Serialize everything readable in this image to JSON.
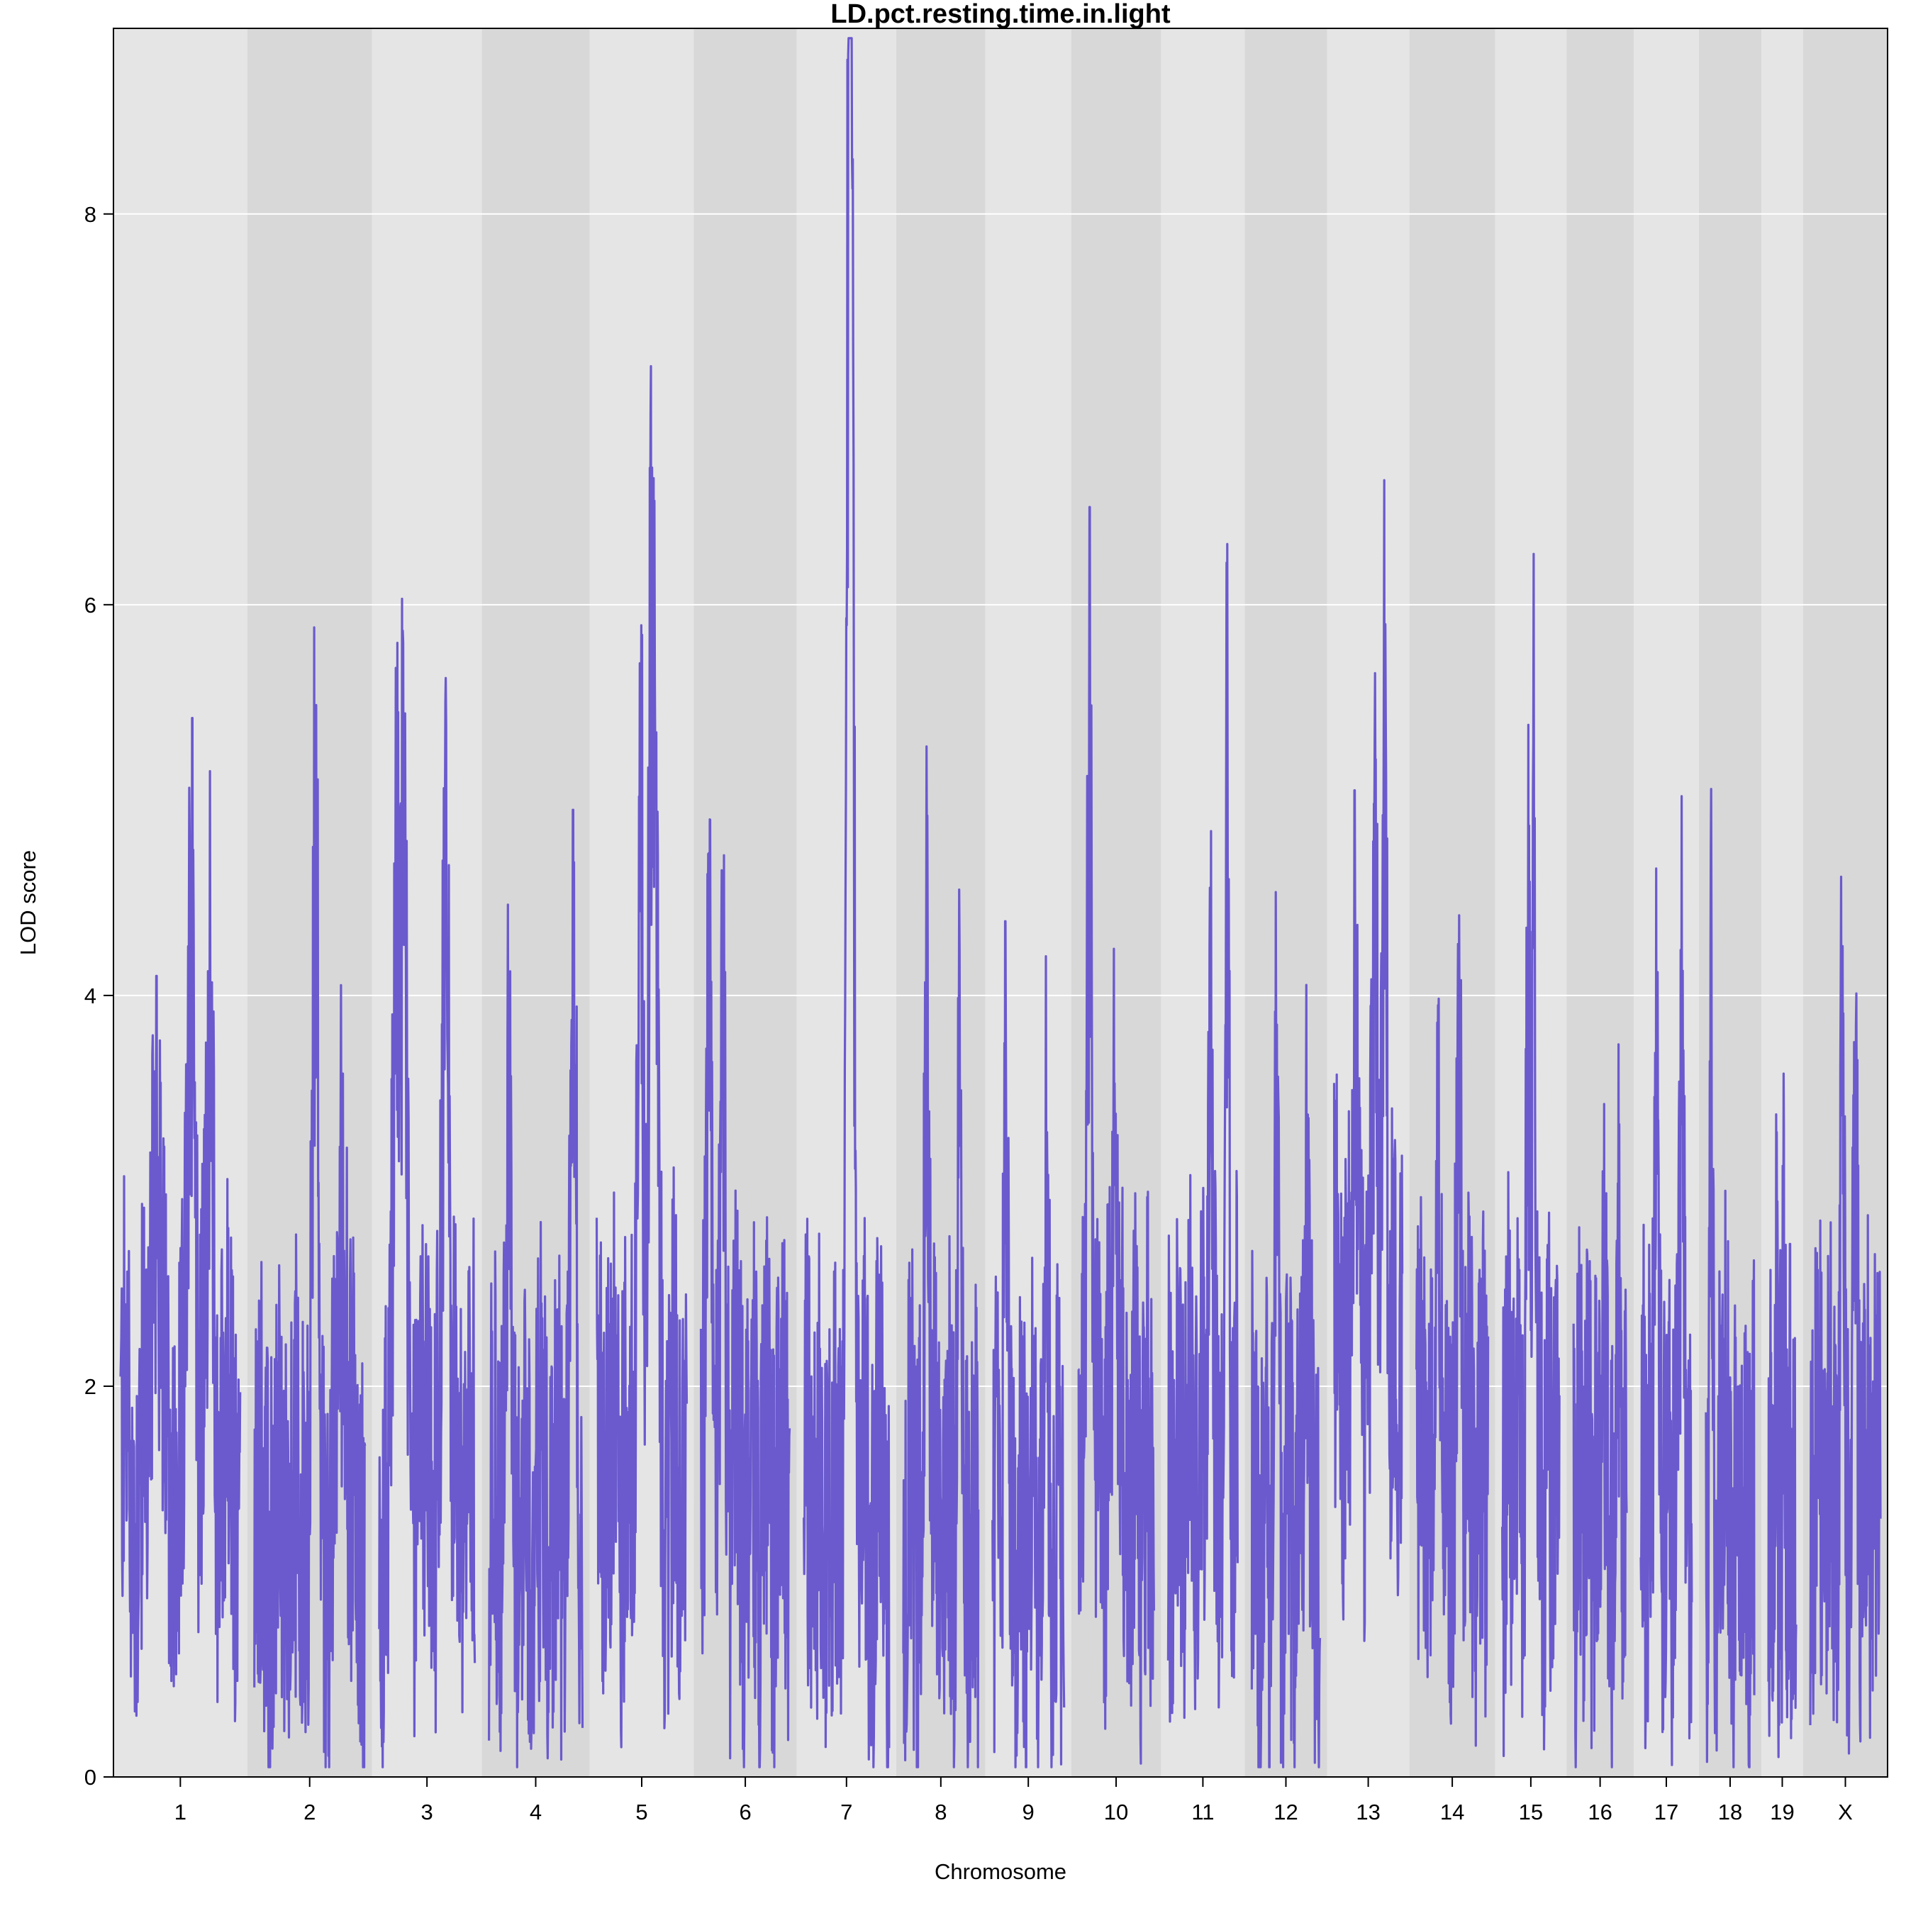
{
  "chart_data": {
    "type": "line",
    "title": "LD.pct.resting.time.in.light",
    "xlabel": "Chromosome",
    "ylabel": "LOD score",
    "ylim": [
      0,
      8.95
    ],
    "yticks": [
      0,
      2,
      4,
      6,
      8
    ],
    "grid": "horizontal",
    "background": "alternating grey bands per chromosome",
    "line_color": "#6a5acd",
    "band_colors": [
      "#e5e5e5",
      "#d8d8d8"
    ],
    "chromosomes": [
      {
        "label": "1",
        "length": 195,
        "baseline": 1.6,
        "peaks": [
          [
            0.6,
            5.42
          ],
          [
            0.3,
            4.1
          ],
          [
            0.75,
            3.98
          ]
        ]
      },
      {
        "label": "2",
        "length": 182,
        "baseline": 1.3,
        "peaks": [
          [
            0.55,
            5.0
          ],
          [
            0.8,
            3.6
          ]
        ]
      },
      {
        "label": "3",
        "length": 160,
        "baseline": 1.5,
        "peaks": [
          [
            0.25,
            5.6
          ],
          [
            0.7,
            5.38
          ],
          [
            0.18,
            5.1
          ]
        ]
      },
      {
        "label": "4",
        "length": 157,
        "baseline": 1.3,
        "peaks": [
          [
            0.9,
            4.95
          ],
          [
            0.2,
            3.75
          ]
        ]
      },
      {
        "label": "5",
        "length": 152,
        "baseline": 1.6,
        "peaks": [
          [
            0.6,
            6.25
          ],
          [
            0.48,
            5.7
          ],
          [
            0.65,
            5.25
          ]
        ]
      },
      {
        "label": "6",
        "length": 150,
        "baseline": 1.5,
        "peaks": [
          [
            0.1,
            4.9
          ],
          [
            0.25,
            3.75
          ]
        ]
      },
      {
        "label": "7",
        "length": 145,
        "baseline": 1.4,
        "peaks": [
          [
            0.53,
            8.75
          ],
          [
            0.56,
            7.0
          ]
        ]
      },
      {
        "label": "8",
        "length": 130,
        "baseline": 1.3,
        "peaks": [
          [
            0.32,
            4.92
          ],
          [
            0.75,
            4.0
          ]
        ]
      },
      {
        "label": "9",
        "length": 125,
        "baseline": 1.2,
        "peaks": [
          [
            0.18,
            4.38
          ],
          [
            0.76,
            3.3
          ]
        ]
      },
      {
        "label": "10",
        "length": 131,
        "baseline": 1.5,
        "peaks": [
          [
            0.15,
            6.5
          ],
          [
            0.48,
            3.55
          ]
        ]
      },
      {
        "label": "11",
        "length": 122,
        "baseline": 1.6,
        "peaks": [
          [
            0.85,
            5.25
          ],
          [
            0.6,
            4.5
          ]
        ]
      },
      {
        "label": "12",
        "length": 120,
        "baseline": 1.3,
        "peaks": [
          [
            0.36,
            3.85
          ],
          [
            0.8,
            3.3
          ]
        ]
      },
      {
        "label": "13",
        "length": 120,
        "baseline": 2.2,
        "peaks": [
          [
            0.75,
            5.9
          ],
          [
            0.6,
            5.65
          ],
          [
            0.3,
            5.05
          ]
        ]
      },
      {
        "label": "14",
        "length": 125,
        "baseline": 1.6,
        "peaks": [
          [
            0.3,
            3.95
          ],
          [
            0.6,
            3.85
          ]
        ]
      },
      {
        "label": "15",
        "length": 104,
        "baseline": 1.6,
        "peaks": [
          [
            0.55,
            6.25
          ],
          [
            0.45,
            4.2
          ]
        ]
      },
      {
        "label": "16",
        "length": 98,
        "baseline": 1.4,
        "peaks": [
          [
            0.85,
            3.75
          ],
          [
            0.55,
            3.1
          ]
        ]
      },
      {
        "label": "17",
        "length": 95,
        "baseline": 1.6,
        "peaks": [
          [
            0.8,
            5.02
          ],
          [
            0.3,
            4.65
          ]
        ]
      },
      {
        "label": "18",
        "length": 91,
        "baseline": 1.3,
        "peaks": [
          [
            0.1,
            3.9
          ],
          [
            0.4,
            3.0
          ]
        ]
      },
      {
        "label": "19",
        "length": 61,
        "baseline": 1.3,
        "peaks": [
          [
            0.55,
            3.6
          ],
          [
            0.3,
            3.3
          ]
        ]
      },
      {
        "label": "X",
        "length": 123,
        "baseline": 1.5,
        "peaks": [
          [
            0.45,
            3.75
          ],
          [
            0.65,
            3.42
          ]
        ]
      }
    ]
  }
}
